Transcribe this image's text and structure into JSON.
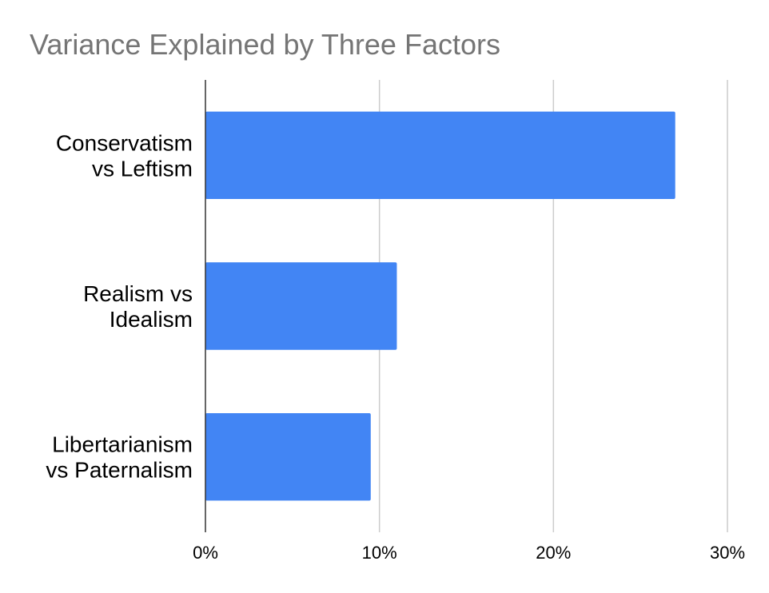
{
  "chart_data": {
    "type": "bar",
    "orientation": "horizontal",
    "title": "Variance Explained by Three Factors",
    "categories": [
      [
        "Conservatism",
        "vs Leftism"
      ],
      [
        "Realism vs",
        "Idealism"
      ],
      [
        "Libertarianism",
        "vs Paternalism"
      ]
    ],
    "values": [
      27,
      11,
      9.5
    ],
    "value_unit": "%",
    "xlim": [
      0,
      30
    ],
    "ticks": [
      {
        "value": 0,
        "label": "0%"
      },
      {
        "value": 10,
        "label": "10%"
      },
      {
        "value": 20,
        "label": "20%"
      },
      {
        "value": 30,
        "label": "30%"
      }
    ],
    "grid": true,
    "legend": "none",
    "bar_color": "#4285F4",
    "grid_color": "#CCCCCC",
    "axis_color": "#333333"
  }
}
